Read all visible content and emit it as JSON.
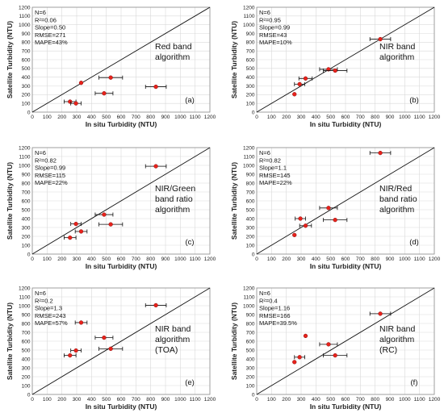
{
  "axis_ticks": [
    "0",
    "100",
    "200",
    "300",
    "400",
    "500",
    "600",
    "700",
    "800",
    "900",
    "1000",
    "1100",
    "1200"
  ],
  "chart_data": [
    {
      "type": "scatter",
      "panel": "(a)",
      "xlabel": "In situ Turbidity (NTU)",
      "ylabel": "Satellite Turbidity (NTU)",
      "xlim": [
        0,
        1200
      ],
      "ylim": [
        0,
        1200
      ],
      "reference_line": "1:1",
      "stats": [
        "N=6",
        "R²=0.06",
        "Slope=0.50",
        "RMSE=271",
        "MAPE=43%"
      ],
      "algorithm": [
        "Red band",
        "algorithm"
      ],
      "points": [
        {
          "x": 255,
          "y": 120,
          "xerr": 40
        },
        {
          "x": 295,
          "y": 100,
          "xerr": 35
        },
        {
          "x": 330,
          "y": 335,
          "xerr": 0
        },
        {
          "x": 485,
          "y": 215,
          "xerr": 60
        },
        {
          "x": 530,
          "y": 395,
          "xerr": 80
        },
        {
          "x": 835,
          "y": 290,
          "xerr": 70
        }
      ]
    },
    {
      "type": "scatter",
      "panel": "(b)",
      "xlabel": "In situ Turbidity (NTU)",
      "ylabel": "Satellite Turbidity (NTU)",
      "xlim": [
        0,
        1200
      ],
      "ylim": [
        0,
        1200
      ],
      "reference_line": "1:1",
      "stats": [
        "N=6",
        "R²=0.95",
        "Slope=0.99",
        "RMSE=43",
        "MAPE=10%"
      ],
      "algorithm": [
        "NIR band",
        "algorithm"
      ],
      "points": [
        {
          "x": 255,
          "y": 205,
          "xerr": 0
        },
        {
          "x": 290,
          "y": 320,
          "xerr": 35
        },
        {
          "x": 330,
          "y": 385,
          "xerr": 45
        },
        {
          "x": 485,
          "y": 490,
          "xerr": 60
        },
        {
          "x": 530,
          "y": 475,
          "xerr": 80
        },
        {
          "x": 835,
          "y": 835,
          "xerr": 70
        }
      ]
    },
    {
      "type": "scatter",
      "panel": "(c)",
      "xlabel": "In situ Turbidity (NTU)",
      "ylabel": "Satellite Turbidity (NTU)",
      "xlim": [
        0,
        1200
      ],
      "ylim": [
        0,
        1200
      ],
      "reference_line": "1:1",
      "stats": [
        "N=6",
        "R²=0.82",
        "Slope=0.99",
        "RMSE=115",
        "MAPE=22%"
      ],
      "algorithm": [
        "NIR/Green",
        "band ratio",
        "algorithm"
      ],
      "points": [
        {
          "x": 255,
          "y": 185,
          "xerr": 40
        },
        {
          "x": 295,
          "y": 340,
          "xerr": 35
        },
        {
          "x": 330,
          "y": 255,
          "xerr": 40
        },
        {
          "x": 485,
          "y": 445,
          "xerr": 60
        },
        {
          "x": 530,
          "y": 335,
          "xerr": 80
        },
        {
          "x": 835,
          "y": 990,
          "xerr": 70
        }
      ]
    },
    {
      "type": "scatter",
      "panel": "(d)",
      "xlabel": "In situ Turbidity (NTU)",
      "ylabel": "Satellite Turbidity (NTU)",
      "xlim": [
        0,
        1200
      ],
      "ylim": [
        0,
        1200
      ],
      "reference_line": "1:1",
      "stats": [
        "N=6",
        "R²=0.82",
        "Slope=1.1",
        "RMSE=145",
        "MAPE=22%"
      ],
      "algorithm": [
        "NIR/Red",
        "band ratio",
        "algorithm"
      ],
      "points": [
        {
          "x": 255,
          "y": 215,
          "xerr": 0
        },
        {
          "x": 295,
          "y": 400,
          "xerr": 35
        },
        {
          "x": 330,
          "y": 320,
          "xerr": 40
        },
        {
          "x": 485,
          "y": 520,
          "xerr": 60
        },
        {
          "x": 530,
          "y": 385,
          "xerr": 80
        },
        {
          "x": 835,
          "y": 1140,
          "xerr": 70
        }
      ]
    },
    {
      "type": "scatter",
      "panel": "(e)",
      "xlabel": "In situ Turbidity (NTU)",
      "ylabel": "Satellite Turbidity (NTU)",
      "xlim": [
        0,
        1200
      ],
      "ylim": [
        0,
        1200
      ],
      "reference_line": "1:1",
      "stats": [
        "N=6",
        "R²=0.2",
        "Slope=1.3",
        "RMSE=243",
        "MAPE=57%"
      ],
      "algorithm": [
        "NIR band",
        "algorithm",
        "(TOA)"
      ],
      "points": [
        {
          "x": 255,
          "y": 440,
          "xerr": 40
        },
        {
          "x": 295,
          "y": 495,
          "xerr": 35
        },
        {
          "x": 330,
          "y": 810,
          "xerr": 40
        },
        {
          "x": 485,
          "y": 640,
          "xerr": 60
        },
        {
          "x": 530,
          "y": 515,
          "xerr": 80
        },
        {
          "x": 835,
          "y": 1005,
          "xerr": 70
        }
      ]
    },
    {
      "type": "scatter",
      "panel": "(f)",
      "xlabel": "In situ Turbidity (NTU)",
      "ylabel": "Satellite Turbidity (NTU)",
      "xlim": [
        0,
        1200
      ],
      "ylim": [
        0,
        1200
      ],
      "reference_line": "1:1",
      "stats": [
        "N=6",
        "R²=0.4",
        "Slope=1.16",
        "RMSE=166",
        "MAPE=39.5%"
      ],
      "algorithm": [
        "NIR band",
        "algorithm",
        "(RC)"
      ],
      "points": [
        {
          "x": 255,
          "y": 365,
          "xerr": 0
        },
        {
          "x": 290,
          "y": 420,
          "xerr": 35
        },
        {
          "x": 330,
          "y": 660,
          "xerr": 0
        },
        {
          "x": 485,
          "y": 565,
          "xerr": 60
        },
        {
          "x": 530,
          "y": 440,
          "xerr": 80
        },
        {
          "x": 835,
          "y": 910,
          "xerr": 70
        }
      ]
    }
  ]
}
